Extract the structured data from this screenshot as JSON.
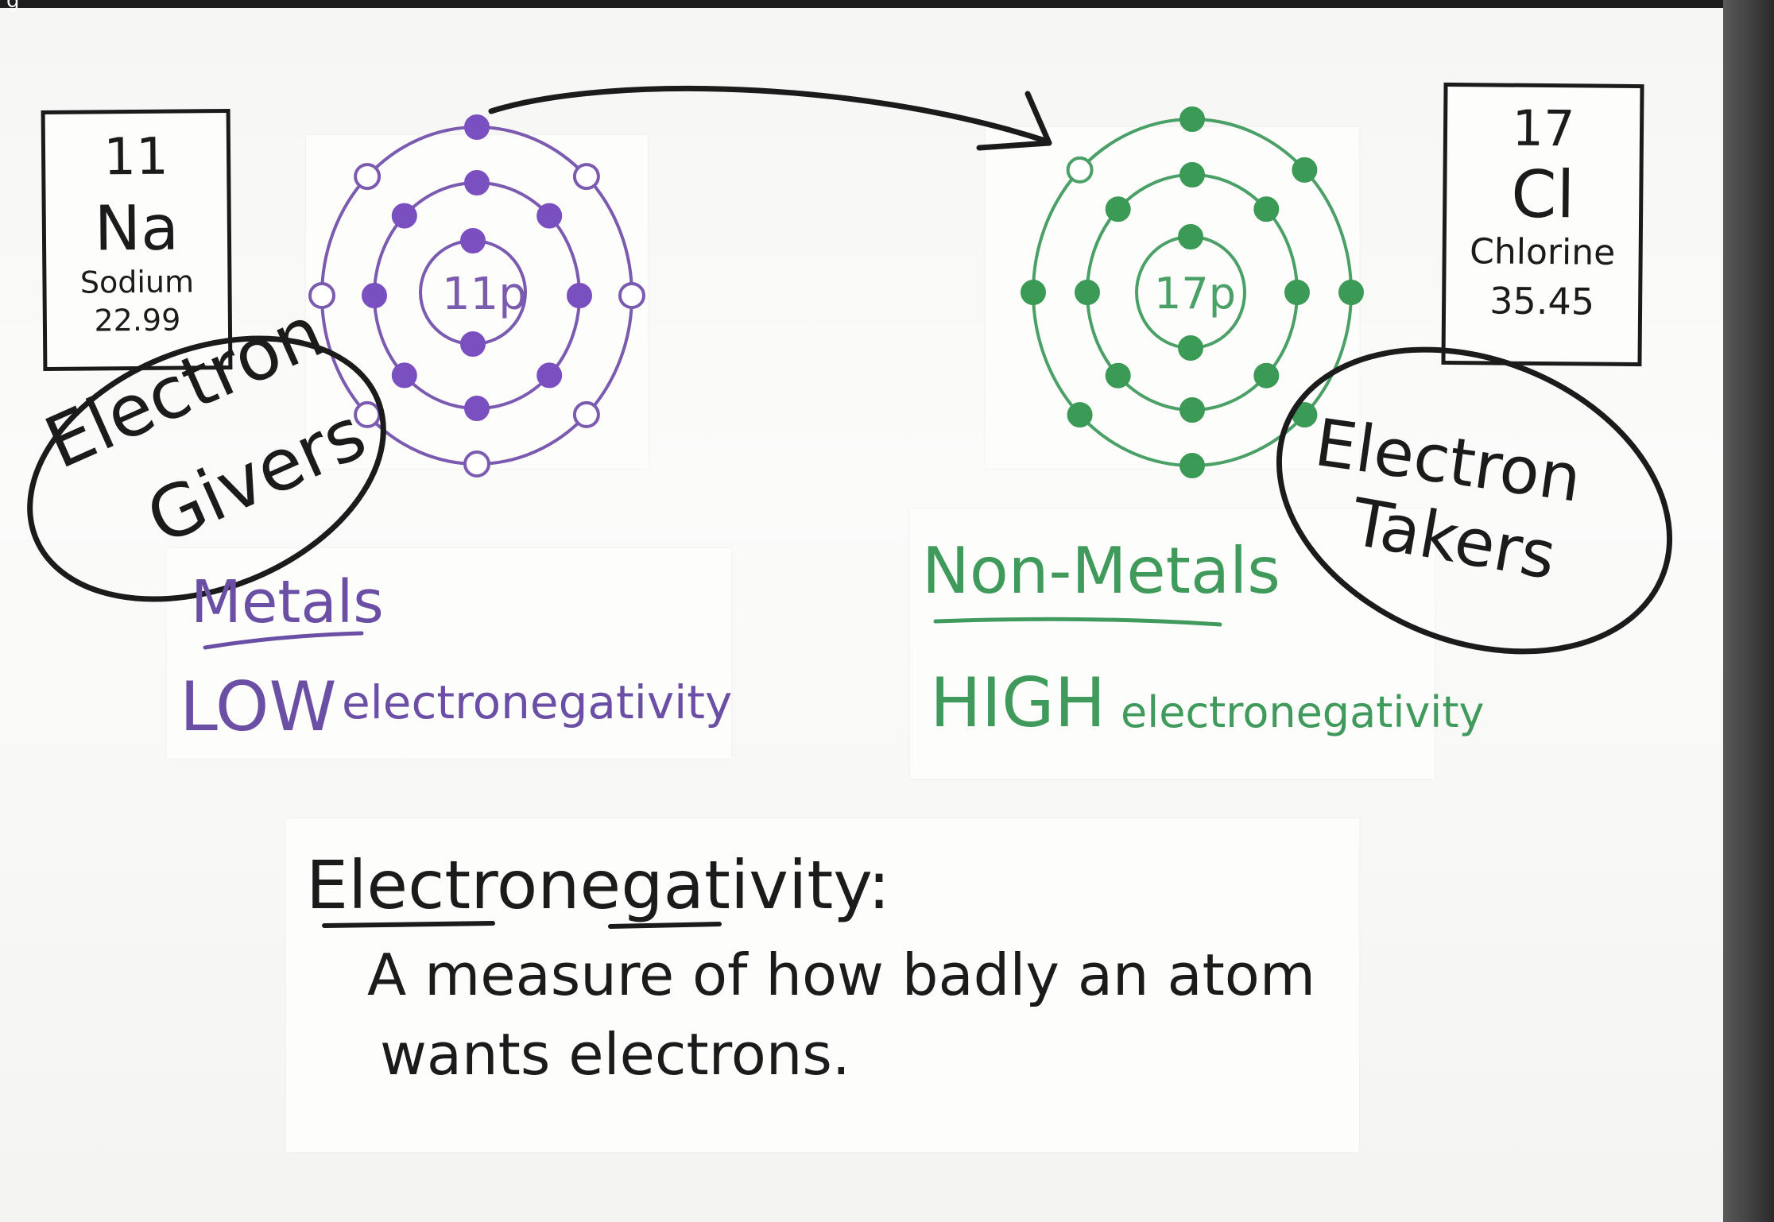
{
  "top_caption": "g",
  "sodium": {
    "number": "11",
    "symbol": "Na",
    "name": "Sodium",
    "mass": "22.99",
    "nucleus": "11p",
    "inner_electrons": 2,
    "middle_electrons": 8,
    "outer_electrons": 1,
    "color": "#7a4fbf"
  },
  "chlorine": {
    "number": "17",
    "symbol": "Cl",
    "name": "Chlorine",
    "mass": "35.45",
    "nucleus": "17p",
    "inner_electrons": 2,
    "middle_electrons": 8,
    "outer_electrons": 7,
    "color": "#3a9a56"
  },
  "left_label": {
    "line1": "Electron",
    "line2": "Givers"
  },
  "right_label": {
    "line1": "Electron",
    "line2": "Takers"
  },
  "metals": {
    "title": "Metals",
    "level": "LOW",
    "property": "electronegativity"
  },
  "nonmetals": {
    "title": "Non-Metals",
    "level": "HIGH",
    "property": "electronegativity"
  },
  "definition": {
    "term": "Electronegativity",
    "colon": ":",
    "line1": "A measure of how badly an atom",
    "line2": "wants electrons."
  }
}
